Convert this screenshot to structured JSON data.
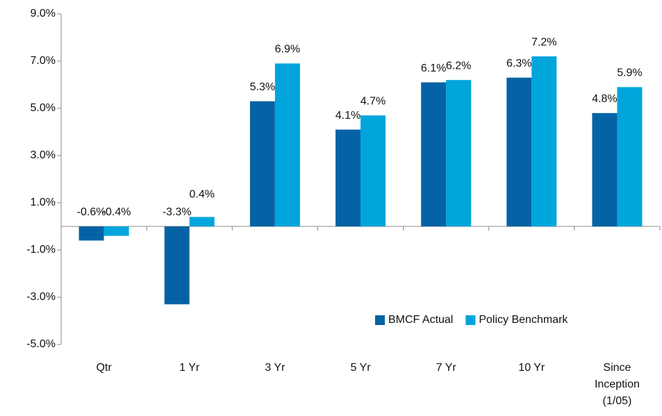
{
  "chart_data": {
    "type": "bar",
    "categories": [
      "Qtr",
      "1 Yr",
      "3 Yr",
      "5 Yr",
      "7 Yr",
      "10 Yr",
      "Since Inception (1/05)"
    ],
    "series": [
      {
        "name": "BMCF Actual",
        "color": "#0563a5",
        "values": [
          -0.6,
          -3.3,
          5.3,
          4.1,
          6.1,
          6.3,
          4.8
        ],
        "value_labels": [
          "-0.6%",
          "-3.3%",
          "5.3%",
          "4.1%",
          "6.1%",
          "6.3%",
          "4.8%"
        ]
      },
      {
        "name": "Policy Benchmark",
        "color": "#00a5dc",
        "values": [
          -0.4,
          0.4,
          6.9,
          4.7,
          6.2,
          7.2,
          5.9
        ],
        "value_labels": [
          "-0.4%",
          "0.4%",
          "6.9%",
          "4.7%",
          "6.2%",
          "7.2%",
          "5.9%"
        ]
      }
    ],
    "ylim": [
      -5,
      9
    ],
    "yticks": [
      {
        "value": -5,
        "label": "-5.0%"
      },
      {
        "value": -3,
        "label": "-3.0%"
      },
      {
        "value": -1,
        "label": "-1.0%"
      },
      {
        "value": 1,
        "label": "1.0%"
      },
      {
        "value": 3,
        "label": "3.0%"
      },
      {
        "value": 5,
        "label": "5.0%"
      },
      {
        "value": 7,
        "label": "7.0%"
      },
      {
        "value": 9,
        "label": "9.0%"
      }
    ],
    "legend": "lower right"
  }
}
